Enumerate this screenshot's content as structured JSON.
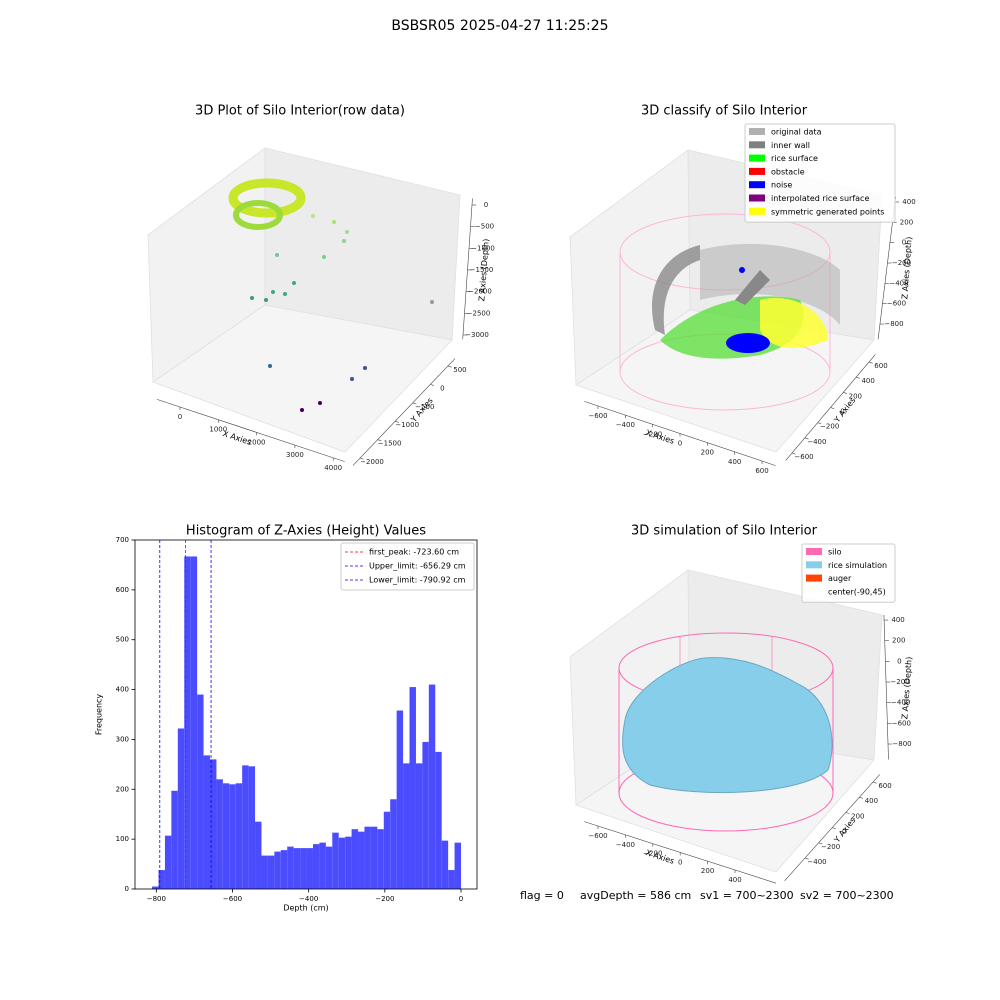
{
  "title": "BSBSR05 2025-04-27 11:25:25",
  "footer": [
    "flag = 0",
    "avgDepth = 586 cm",
    "sv1 = 700~2300",
    "sv2 = 700~2300"
  ],
  "chart_data": [
    {
      "type": "scatter3d",
      "title": "3D Plot of Silo Interior(row data)",
      "xlabel": "X Axies",
      "ylabel": "Y Axies",
      "zlabel": "Z Axies (Depth)",
      "xlim": [
        -600,
        4300
      ],
      "xticks": [
        0,
        1000,
        2000,
        3000,
        4000
      ],
      "ylim": [
        -2200,
        700
      ],
      "yticks": [
        {
          "value": -2000,
          "label": "−2000"
        },
        {
          "value": -1500,
          "label": "−1500"
        },
        {
          "value": -1000,
          "label": "−1000"
        },
        {
          "value": -500,
          "label": "−500"
        },
        0,
        500
      ],
      "zlim": [
        -3100,
        150
      ],
      "zticks": [
        {
          "value": -3000,
          "label": "−3000"
        },
        {
          "value": -2500,
          "label": "−2500"
        },
        {
          "value": -2000,
          "label": "−2000"
        },
        {
          "value": -1500,
          "label": "−1500"
        },
        {
          "value": -1000,
          "label": "−1000"
        },
        {
          "value": -500,
          "label": "−500"
        },
        0
      ]
    },
    {
      "type": "scatter3d",
      "title": "3D classify of Silo Interior",
      "xlabel": "X Axies",
      "ylabel": "Y Axies",
      "zlabel": "Z Axies (Depth)",
      "xlim": [
        -700,
        700
      ],
      "xticks": [
        {
          "value": -600,
          "label": "−600"
        },
        {
          "value": -400,
          "label": "−400"
        },
        {
          "value": -200,
          "label": "−200"
        },
        0,
        200,
        400,
        600
      ],
      "ylim": [
        -700,
        700
      ],
      "yticks": [
        {
          "value": -600,
          "label": "−600"
        },
        {
          "value": -400,
          "label": "−400"
        },
        {
          "value": -200,
          "label": "−200"
        },
        0,
        200,
        400,
        600
      ],
      "zlim": [
        -950,
        450
      ],
      "zticks": [
        {
          "value": -800,
          "label": "−800"
        },
        {
          "value": -600,
          "label": "−600"
        },
        {
          "value": -400,
          "label": "−400"
        },
        {
          "value": -200,
          "label": "−200"
        },
        0,
        200,
        400
      ],
      "legend": [
        {
          "name": "original data",
          "color": "#b0b0b0"
        },
        {
          "name": "inner wall",
          "color": "#808080"
        },
        {
          "name": "rice surface",
          "color": "#00ff00"
        },
        {
          "name": "obstacle",
          "color": "#ff0000"
        },
        {
          "name": "noise",
          "color": "#0000ff"
        },
        {
          "name": "interpolated rice surface",
          "color": "#800080"
        },
        {
          "name": "symmetric generated points",
          "color": "#ffff00"
        }
      ]
    },
    {
      "type": "histogram",
      "title": "Histogram of Z-Axies (Height) Values",
      "xlabel": "Depth (cm)",
      "ylabel": "Frequency",
      "color": "#4c4cff",
      "bins": [
        -811.2,
        -794.3,
        -777.4,
        -760.5,
        -743.6,
        -726.7,
        -709.8,
        -692.9,
        -676.0,
        -659.1,
        -642.2,
        -625.3,
        -608.4,
        -591.5,
        -574.6,
        -557.7,
        -540.8,
        -523.9,
        -507.0,
        -490.1,
        -473.2,
        -456.3,
        -439.4,
        -422.5,
        -405.6,
        -388.7,
        -371.8,
        -354.9,
        -338.0,
        -321.1,
        -304.2,
        -287.3,
        -270.4,
        -253.5,
        -236.6,
        -219.7,
        -202.8,
        -185.9,
        -169.0,
        -152.1,
        -135.2,
        -118.3,
        -101.4,
        -84.5,
        -67.6,
        -50.7,
        -33.8,
        -16.9,
        0
      ],
      "counts": [
        5,
        38,
        107,
        197,
        322,
        667,
        667,
        390,
        268,
        260,
        220,
        212,
        210,
        212,
        248,
        246,
        135,
        67,
        67,
        75,
        78,
        85,
        82,
        82,
        82,
        90,
        93,
        85,
        113,
        103,
        105,
        120,
        115,
        125,
        125,
        120,
        155,
        180,
        358,
        252,
        405,
        252,
        295,
        410,
        275,
        97,
        38,
        93
      ],
      "xlim": [
        -856,
        42
      ],
      "xticks": [
        {
          "value": -800,
          "label": "−800"
        },
        {
          "value": -600,
          "label": "−600"
        },
        {
          "value": -400,
          "label": "−400"
        },
        {
          "value": -200,
          "label": "−200"
        },
        0
      ],
      "ylim": [
        0,
        700
      ],
      "yticks": [
        0,
        100,
        200,
        300,
        400,
        500,
        600,
        700
      ],
      "vlines": [
        {
          "name": "first_peak: -723.60 cm",
          "value": -723.6,
          "color": "#ff0000"
        },
        {
          "name": "Upper_limit: -656.29 cm",
          "value": -656.29,
          "color": "#0000ff"
        },
        {
          "name": "Lower_limit: -790.92 cm",
          "value": -790.92,
          "color": "#0000ff"
        }
      ],
      "legend_position": "upper right"
    },
    {
      "type": "surface3d",
      "title": "3D simulation of Silo Interior",
      "xlabel": "X Axies",
      "ylabel": "Y Axies",
      "zlabel": "Z Axies (Depth)",
      "xlim": [
        -700,
        700
      ],
      "xticks": [
        {
          "value": -600,
          "label": "−600"
        },
        {
          "value": -400,
          "label": "−400"
        },
        {
          "value": -200,
          "label": "−200"
        },
        0,
        200,
        400
      ],
      "ylim": [
        -700,
        700
      ],
      "yticks": [
        {
          "value": -400,
          "label": "−400"
        },
        {
          "value": -200,
          "label": "−200"
        },
        0,
        200,
        400,
        600
      ],
      "zlim": [
        -950,
        450
      ],
      "zticks": [
        {
          "value": -800,
          "label": "−800"
        },
        {
          "value": -600,
          "label": "−600"
        },
        {
          "value": -400,
          "label": "−400"
        },
        {
          "value": -200,
          "label": "−200"
        },
        0,
        200,
        400
      ],
      "legend": [
        {
          "name": "silo",
          "color": "#ff69b4"
        },
        {
          "name": "rice simulation",
          "color": "#87ceeb"
        },
        {
          "name": "auger",
          "color": "#ff4500"
        },
        {
          "name": "center(-90,45)",
          "color": "#ffffff"
        }
      ]
    }
  ]
}
